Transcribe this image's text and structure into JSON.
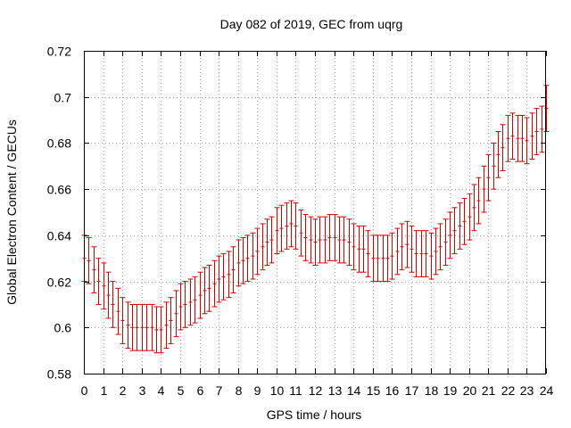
{
  "chart_data": {
    "type": "scatter",
    "title": "Day 082 of 2019, GEC from uqrg",
    "xlabel": "GPS time / hours",
    "ylabel": "Global Electron Content / GECUs",
    "xlim": [
      0,
      24
    ],
    "ylim": [
      0.58,
      0.72
    ],
    "x_ticks": [
      "0",
      "1",
      "2",
      "3",
      "4",
      "5",
      "6",
      "7",
      "8",
      "9",
      "10",
      "11",
      "12",
      "13",
      "14",
      "15",
      "16",
      "17",
      "18",
      "19",
      "20",
      "21",
      "22",
      "23",
      "24"
    ],
    "y_ticks": [
      "0.58",
      "0.6",
      "0.62",
      "0.64",
      "0.66",
      "0.68",
      "0.7",
      "0.72"
    ],
    "grid": true,
    "series_color": "#cc0000",
    "error_half_width": 0.01,
    "series": [
      {
        "name": "GEC",
        "x": [
          0.0,
          0.25,
          0.5,
          0.75,
          1.0,
          1.25,
          1.5,
          1.75,
          2.0,
          2.25,
          2.5,
          2.75,
          3.0,
          3.25,
          3.5,
          3.75,
          4.0,
          4.25,
          4.5,
          4.75,
          5.0,
          5.25,
          5.5,
          5.75,
          6.0,
          6.25,
          6.5,
          6.75,
          7.0,
          7.25,
          7.5,
          7.75,
          8.0,
          8.25,
          8.5,
          8.75,
          9.0,
          9.25,
          9.5,
          9.75,
          10.0,
          10.25,
          10.5,
          10.75,
          11.0,
          11.25,
          11.5,
          11.75,
          12.0,
          12.25,
          12.5,
          12.75,
          13.0,
          13.25,
          13.5,
          13.75,
          14.0,
          14.25,
          14.5,
          14.75,
          15.0,
          15.25,
          15.5,
          15.75,
          16.0,
          16.25,
          16.5,
          16.75,
          17.0,
          17.25,
          17.5,
          17.75,
          18.0,
          18.25,
          18.5,
          18.75,
          19.0,
          19.25,
          19.5,
          19.75,
          20.0,
          20.25,
          20.5,
          20.75,
          21.0,
          21.25,
          21.5,
          21.75,
          22.0,
          22.25,
          22.5,
          22.75,
          23.0,
          23.25,
          23.5,
          23.75,
          24.0
        ],
        "y": [
          0.63,
          0.629,
          0.625,
          0.62,
          0.618,
          0.614,
          0.61,
          0.607,
          0.603,
          0.601,
          0.6,
          0.6,
          0.6,
          0.6,
          0.6,
          0.599,
          0.599,
          0.601,
          0.603,
          0.606,
          0.609,
          0.61,
          0.611,
          0.612,
          0.614,
          0.616,
          0.617,
          0.619,
          0.621,
          0.622,
          0.623,
          0.625,
          0.628,
          0.629,
          0.63,
          0.631,
          0.633,
          0.635,
          0.637,
          0.638,
          0.642,
          0.643,
          0.644,
          0.645,
          0.644,
          0.641,
          0.639,
          0.638,
          0.637,
          0.638,
          0.638,
          0.639,
          0.639,
          0.638,
          0.638,
          0.637,
          0.635,
          0.634,
          0.634,
          0.632,
          0.63,
          0.63,
          0.63,
          0.63,
          0.631,
          0.633,
          0.635,
          0.636,
          0.634,
          0.632,
          0.632,
          0.632,
          0.631,
          0.633,
          0.635,
          0.637,
          0.64,
          0.642,
          0.644,
          0.646,
          0.648,
          0.652,
          0.655,
          0.66,
          0.665,
          0.67,
          0.675,
          0.678,
          0.682,
          0.683,
          0.682,
          0.682,
          0.681,
          0.683,
          0.685,
          0.686,
          0.695
        ]
      }
    ]
  }
}
